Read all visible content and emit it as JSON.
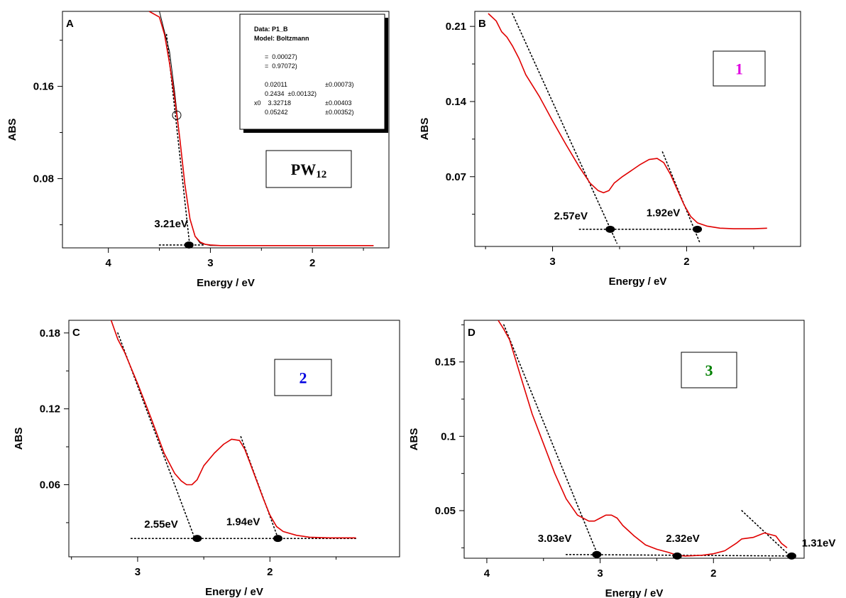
{
  "chart_data": [
    {
      "panel": "A",
      "type": "line",
      "xlabel": "Energy / eV",
      "ylabel": "ABS",
      "x_ticks": [
        4,
        3,
        2
      ],
      "y_ticks": [
        0.08,
        0.16
      ],
      "xlim": [
        4.45,
        1.25
      ],
      "ylim": [
        0.02,
        0.225
      ],
      "x_reversed": true,
      "box_label": {
        "main": "PW",
        "sub": "12",
        "color": "#000000"
      },
      "series": [
        {
          "color": "#e00000",
          "x": [
            3.6,
            3.5,
            3.45,
            3.4,
            3.35,
            3.3,
            3.25,
            3.2,
            3.15,
            3.1,
            3.05,
            3.0,
            2.9,
            2.5,
            2.0,
            1.5,
            1.4
          ],
          "y": [
            0.225,
            0.22,
            0.205,
            0.18,
            0.15,
            0.115,
            0.075,
            0.045,
            0.03,
            0.025,
            0.023,
            0.0225,
            0.022,
            0.022,
            0.022,
            0.022,
            0.022
          ]
        }
      ],
      "tangents": [
        {
          "x": [
            3.5,
            3.05
          ],
          "y": [
            0.0225,
            0.0225
          ]
        },
        {
          "x": [
            3.43,
            3.2
          ],
          "y": [
            0.205,
            0.02
          ]
        }
      ],
      "fit_line": {
        "color": "#000000",
        "x": [
          3.5,
          3.4,
          3.35,
          3.3,
          3.25,
          3.2,
          3.15,
          3.1,
          3.0,
          2.9
        ],
        "y": [
          0.225,
          0.19,
          0.155,
          0.115,
          0.075,
          0.045,
          0.03,
          0.024,
          0.022,
          0.022
        ]
      },
      "open_marker": {
        "x": 3.33,
        "y": 0.135
      },
      "gap_markers": [
        {
          "x": 3.21,
          "y": 0.0225,
          "label": "3.21eV",
          "label_x": 3.55,
          "label_y": 0.038
        }
      ],
      "info_box": {
        "lines": [
          {
            "t": "Data: P1_B",
            "bold": true,
            "col2": ""
          },
          {
            "t": "Model: Boltzmann",
            "bold": true,
            "col2": ""
          },
          {
            "t": "",
            "bold": false,
            "col2": ""
          },
          {
            "t": "      =  0.00027)",
            "bold": false,
            "col2": ""
          },
          {
            "t": "      =  0.97072)",
            "bold": false,
            "col2": ""
          },
          {
            "t": "",
            "bold": false,
            "col2": ""
          },
          {
            "t": "      0.02011",
            "bold": false,
            "col2": "±0.00073)"
          },
          {
            "t": "      0.2434  ±0.00132)",
            "bold": false,
            "col2": ""
          },
          {
            "t": "x0    3.32718",
            "bold": false,
            "col2": "±0.00403"
          },
          {
            "t": "      0.05242",
            "bold": false,
            "col2": "±0.00352)"
          }
        ]
      }
    },
    {
      "panel": "B",
      "type": "line",
      "xlabel": "Energy / eV",
      "ylabel": "ABS",
      "x_ticks": [
        3,
        2
      ],
      "y_ticks": [
        0.07,
        0.14,
        0.21
      ],
      "xlim": [
        3.58,
        1.15
      ],
      "ylim": [
        0.005,
        0.224
      ],
      "x_reversed": true,
      "box_label": {
        "main": "1",
        "sub": "",
        "color": "#e000e0"
      },
      "series": [
        {
          "color": "#e00000",
          "x": [
            3.48,
            3.42,
            3.38,
            3.34,
            3.3,
            3.25,
            3.2,
            3.1,
            3.0,
            2.9,
            2.8,
            2.72,
            2.66,
            2.62,
            2.58,
            2.54,
            2.48,
            2.42,
            2.35,
            2.28,
            2.22,
            2.17,
            2.12,
            2.07,
            2.02,
            1.97,
            1.92,
            1.85,
            1.75,
            1.65,
            1.5,
            1.4
          ],
          "y": [
            0.222,
            0.215,
            0.205,
            0.2,
            0.192,
            0.18,
            0.165,
            0.145,
            0.122,
            0.1,
            0.079,
            0.064,
            0.057,
            0.055,
            0.057,
            0.064,
            0.07,
            0.075,
            0.081,
            0.086,
            0.087,
            0.083,
            0.072,
            0.058,
            0.044,
            0.033,
            0.027,
            0.024,
            0.022,
            0.0215,
            0.0215,
            0.022
          ]
        }
      ],
      "tangents": [
        {
          "x": [
            2.8,
            1.95
          ],
          "y": [
            0.021,
            0.021
          ]
        },
        {
          "x": [
            3.3,
            2.52
          ],
          "y": [
            0.222,
            0.008
          ]
        },
        {
          "x": [
            2.18,
            1.9
          ],
          "y": [
            0.093,
            0.008
          ]
        }
      ],
      "gap_markers": [
        {
          "x": 2.57,
          "y": 0.021,
          "label": "2.57eV",
          "label_x": 2.99,
          "label_y": 0.03
        },
        {
          "x": 1.92,
          "y": 0.021,
          "label": "1.92eV",
          "label_x": 2.3,
          "label_y": 0.033
        }
      ]
    },
    {
      "panel": "C",
      "type": "line",
      "xlabel": "Energy / eV",
      "ylabel": "ABS",
      "x_ticks": [
        3,
        2
      ],
      "y_ticks": [
        0.06,
        0.12,
        0.18
      ],
      "xlim": [
        3.52,
        1.02
      ],
      "ylim": [
        0.003,
        0.19
      ],
      "x_reversed": true,
      "box_label": {
        "main": "2",
        "sub": "",
        "color": "#0000e0"
      },
      "series": [
        {
          "color": "#e00000",
          "x": [
            3.2,
            3.15,
            3.1,
            3.0,
            2.9,
            2.8,
            2.72,
            2.67,
            2.63,
            2.59,
            2.55,
            2.5,
            2.42,
            2.35,
            2.29,
            2.23,
            2.19,
            2.15,
            2.1,
            2.05,
            2.0,
            1.95,
            1.9,
            1.8,
            1.7,
            1.55,
            1.4,
            1.35
          ],
          "y": [
            0.19,
            0.175,
            0.165,
            0.14,
            0.113,
            0.085,
            0.069,
            0.063,
            0.06,
            0.06,
            0.064,
            0.075,
            0.085,
            0.092,
            0.096,
            0.095,
            0.088,
            0.077,
            0.063,
            0.049,
            0.036,
            0.027,
            0.023,
            0.02,
            0.0185,
            0.018,
            0.018,
            0.018
          ]
        }
      ],
      "tangents": [
        {
          "x": [
            3.05,
            1.35
          ],
          "y": [
            0.0175,
            0.0175
          ]
        },
        {
          "x": [
            3.15,
            2.57
          ],
          "y": [
            0.18,
            0.018
          ]
        },
        {
          "x": [
            2.22,
            1.94
          ],
          "y": [
            0.098,
            0.018
          ]
        }
      ],
      "gap_markers": [
        {
          "x": 2.55,
          "y": 0.0175,
          "label": "2.55eV",
          "label_x": 2.95,
          "label_y": 0.026
        },
        {
          "x": 1.94,
          "y": 0.0175,
          "label": "1.94eV",
          "label_x": 2.33,
          "label_y": 0.028
        }
      ]
    },
    {
      "panel": "D",
      "type": "line",
      "xlabel": "Energy / eV",
      "ylabel": "ABS",
      "x_ticks": [
        4,
        3,
        2
      ],
      "y_ticks": [
        0.05,
        0.1,
        0.15
      ],
      "xlim": [
        4.2,
        1.2
      ],
      "ylim": [
        0.018,
        0.178
      ],
      "x_reversed": true,
      "box_label": {
        "main": "3",
        "sub": "",
        "color": "#008000"
      },
      "series": [
        {
          "color": "#e00000",
          "x": [
            3.9,
            3.85,
            3.8,
            3.7,
            3.6,
            3.5,
            3.4,
            3.3,
            3.2,
            3.1,
            3.05,
            3.0,
            2.95,
            2.9,
            2.85,
            2.8,
            2.7,
            2.6,
            2.5,
            2.4,
            2.32,
            2.25,
            2.1,
            2.0,
            1.9,
            1.8,
            1.75,
            1.65,
            1.55,
            1.45,
            1.4,
            1.35
          ],
          "y": [
            0.178,
            0.172,
            0.165,
            0.14,
            0.115,
            0.095,
            0.075,
            0.058,
            0.047,
            0.043,
            0.043,
            0.045,
            0.047,
            0.047,
            0.045,
            0.04,
            0.033,
            0.027,
            0.024,
            0.022,
            0.02,
            0.0195,
            0.02,
            0.021,
            0.023,
            0.028,
            0.031,
            0.032,
            0.035,
            0.033,
            0.028,
            0.025
          ]
        }
      ],
      "tangents": [
        {
          "x": [
            3.3,
            1.3
          ],
          "y": [
            0.0205,
            0.0195
          ]
        },
        {
          "x": [
            3.85,
            3.02
          ],
          "y": [
            0.175,
            0.02
          ]
        },
        {
          "x": [
            1.75,
            1.33
          ],
          "y": [
            0.05,
            0.02
          ]
        }
      ],
      "gap_markers": [
        {
          "x": 3.03,
          "y": 0.0205,
          "label": "3.03eV",
          "label_x": 3.55,
          "label_y": 0.029
        },
        {
          "x": 2.32,
          "y": 0.0195,
          "label": "2.32eV",
          "label_x": 2.42,
          "label_y": 0.029
        },
        {
          "x": 1.31,
          "y": 0.0195,
          "label": "1.31eV",
          "label_x": 1.22,
          "label_y": 0.026
        }
      ]
    }
  ]
}
